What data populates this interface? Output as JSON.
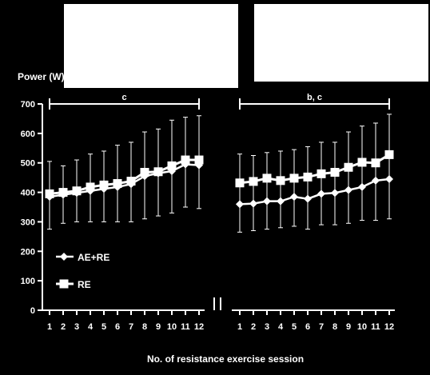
{
  "chart_data": {
    "type": "line",
    "ylabel": "Power (W)",
    "xlabel": "No. of resistance exercise session",
    "ylim": [
      0,
      700
    ],
    "yticks": [
      0,
      100,
      200,
      300,
      400,
      500,
      600,
      700
    ],
    "grid": false,
    "legend": {
      "placement": "bottom-left of left panel",
      "entries": [
        "AE+RE",
        "RE"
      ]
    },
    "colors": {
      "background": "#000000",
      "foreground": "#ffffff"
    },
    "panels": [
      {
        "significance_label": "c",
        "x": [
          1,
          2,
          3,
          4,
          5,
          6,
          7,
          8,
          9,
          10,
          11,
          12
        ],
        "series": [
          {
            "name": "AE+RE",
            "marker": "diamond",
            "values": [
              385,
              392,
              398,
              405,
              412,
              418,
              428,
              455,
              465,
              472,
              495,
              492
            ],
            "errors_upper": [
              505,
              490,
              510,
              530,
              540,
              560,
              570,
              605,
              615,
              645,
              655,
              660
            ],
            "errors_lower": [
              275,
              295,
              300,
              300,
              300,
              300,
              300,
              310,
              320,
              330,
              350,
              345
            ]
          },
          {
            "name": "RE",
            "marker": "square",
            "values": [
              395,
              400,
              405,
              418,
              425,
              430,
              438,
              468,
              470,
              490,
              510,
              510
            ]
          }
        ]
      },
      {
        "significance_label": "b, c",
        "x": [
          1,
          2,
          3,
          4,
          5,
          6,
          7,
          8,
          9,
          10,
          11,
          12
        ],
        "series": [
          {
            "name": "AE+RE",
            "marker": "diamond",
            "values": [
              360,
              362,
              370,
              370,
              385,
              378,
              395,
              398,
              408,
              418,
              440,
              445
            ],
            "errors_upper": [
              530,
              525,
              535,
              540,
              545,
              555,
              570,
              570,
              605,
              625,
              635,
              665
            ],
            "errors_lower": [
              265,
              270,
              275,
              280,
              285,
              275,
              290,
              290,
              295,
              305,
              305,
              310
            ]
          },
          {
            "name": "RE",
            "marker": "square",
            "values": [
              432,
              437,
              448,
              440,
              448,
              452,
              463,
              468,
              485,
              502,
              500,
              528
            ]
          }
        ]
      }
    ]
  }
}
